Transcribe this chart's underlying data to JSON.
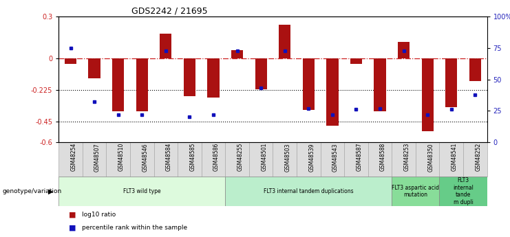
{
  "title": "GDS2242 / 21695",
  "samples": [
    "GSM48254",
    "GSM48507",
    "GSM48510",
    "GSM48546",
    "GSM48584",
    "GSM48585",
    "GSM48586",
    "GSM48255",
    "GSM48501",
    "GSM48503",
    "GSM48539",
    "GSM48543",
    "GSM48587",
    "GSM48588",
    "GSM48253",
    "GSM48350",
    "GSM48541",
    "GSM48252"
  ],
  "log10_ratio": [
    -0.04,
    -0.14,
    -0.38,
    -0.38,
    0.18,
    -0.27,
    -0.28,
    0.06,
    -0.22,
    0.24,
    -0.37,
    -0.48,
    -0.04,
    -0.38,
    0.12,
    -0.52,
    -0.35,
    -0.16
  ],
  "percentile_rank": [
    75,
    32,
    22,
    22,
    73,
    20,
    22,
    73,
    43,
    73,
    27,
    22,
    26,
    27,
    73,
    22,
    26,
    38
  ],
  "ylim_left": [
    -0.6,
    0.3
  ],
  "ylim_right": [
    0,
    100
  ],
  "left_yticks": [
    -0.6,
    -0.45,
    -0.225,
    0,
    0.3
  ],
  "left_yticklabels": [
    "-0.6",
    "-0.45",
    "-0.225",
    "0",
    "0.3"
  ],
  "right_yticks": [
    0,
    25,
    50,
    75,
    100
  ],
  "right_yticklabels": [
    "0",
    "25",
    "50",
    "75",
    "100%"
  ],
  "hline_y": [
    -0.225,
    -0.45
  ],
  "bar_color": "#AA1111",
  "dot_color": "#1111BB",
  "zero_line_color": "#CC2222",
  "hline_color": "#000000",
  "groups": [
    {
      "label": "FLT3 wild type",
      "start": 0,
      "end": 6,
      "color": "#DDFADD"
    },
    {
      "label": "FLT3 internal tandem duplications",
      "start": 7,
      "end": 13,
      "color": "#BBEECC"
    },
    {
      "label": "FLT3 aspartic acid\nmutation",
      "start": 14,
      "end": 15,
      "color": "#88DD99"
    },
    {
      "label": "FLT3\ninternal\ntande\nm dupli",
      "start": 16,
      "end": 17,
      "color": "#66CC88"
    }
  ],
  "genotype_label": "genotype/variation",
  "legend_items": [
    {
      "label": "log10 ratio",
      "color": "#AA1111"
    },
    {
      "label": "percentile rank within the sample",
      "color": "#1111BB"
    }
  ],
  "bar_width": 0.5,
  "sample_col_bg": "#DDDDDD",
  "sample_col_border": "#AAAAAA"
}
